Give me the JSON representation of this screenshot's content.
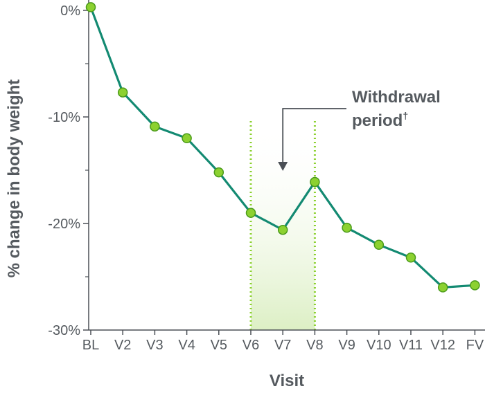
{
  "chart_data": {
    "type": "line",
    "xlabel": "Visit",
    "ylabel": "% change in body weight",
    "ylim": [
      -30,
      0
    ],
    "yticks": [
      0,
      -10,
      -20,
      -30
    ],
    "ytick_labels": [
      "0%",
      "-10%",
      "-20%",
      "-30%"
    ],
    "categories": [
      "BL",
      "V2",
      "V3",
      "V4",
      "V5",
      "V6",
      "V7",
      "V8",
      "V9",
      "V10",
      "V11",
      "V12",
      "FV"
    ],
    "series": [
      {
        "values": [
          0.3,
          -7.7,
          -10.9,
          -12.0,
          -15.2,
          -19.0,
          -20.6,
          -16.1,
          -20.4,
          -22.0,
          -23.2,
          -26.0,
          -25.8
        ]
      }
    ],
    "annotation": {
      "text_line1": "Withdrawal",
      "text_line2": "period",
      "superscript": "†",
      "region_start": "V6",
      "region_end": "V8"
    },
    "colors": {
      "line": "#138a72",
      "marker_fill": "#8cd130",
      "marker_stroke": "#4a9a1a",
      "region_fill": "#e4f2cf",
      "region_border": "#8cd130",
      "axis": "#4a4f55",
      "text": "#555a5f"
    }
  }
}
